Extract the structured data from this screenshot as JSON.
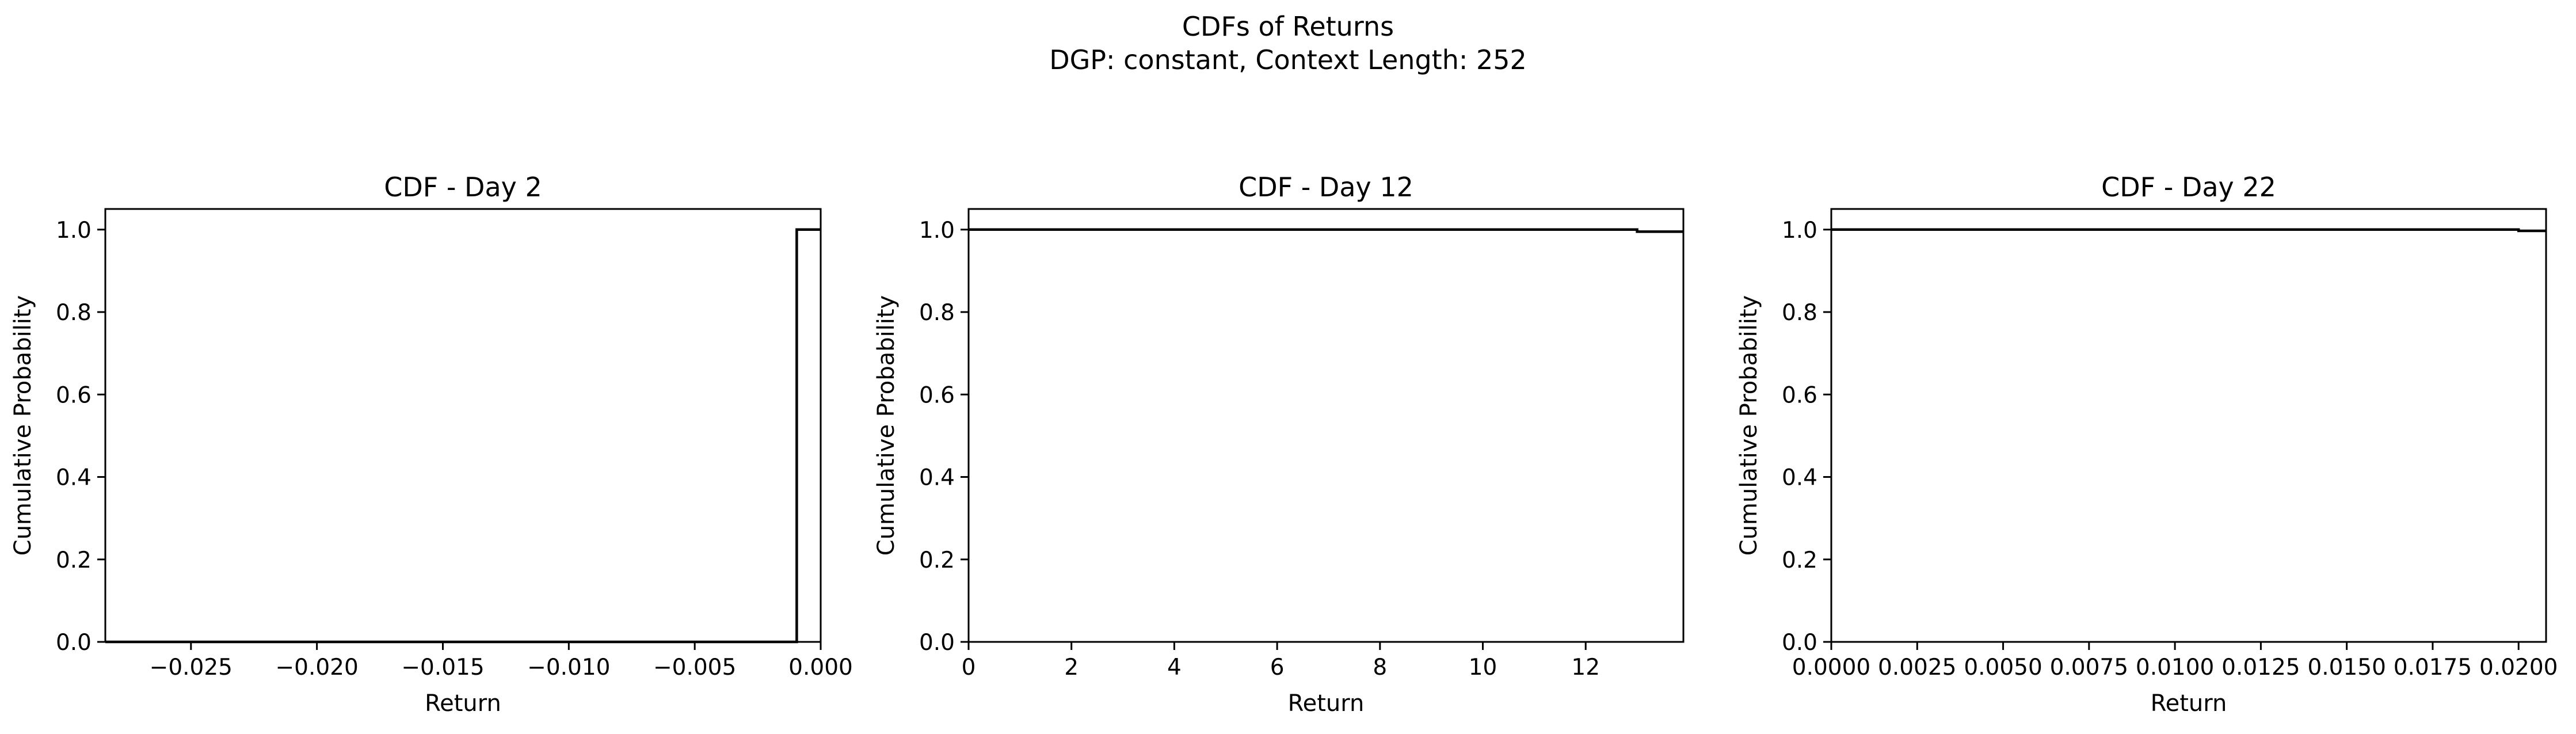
{
  "figure": {
    "suptitle_line1": "CDFs of Returns",
    "suptitle_line2": "DGP: constant, Context Length: 252"
  },
  "chart_data": [
    {
      "type": "line",
      "drawstyle": "steps-post",
      "title": "CDF - Day 2",
      "xlabel": "Return",
      "ylabel": "Cumulative Probability",
      "xlim": [
        -0.0284,
        0.0
      ],
      "ylim": [
        0.0,
        1.05
      ],
      "xticks": [
        -0.025,
        -0.02,
        -0.015,
        -0.01,
        -0.005,
        0.0
      ],
      "xtick_labels": [
        "−0.025",
        "−0.020",
        "−0.015",
        "−0.010",
        "−0.005",
        "0.000"
      ],
      "yticks": [
        0.0,
        0.2,
        0.4,
        0.6,
        0.8,
        1.0
      ],
      "ytick_labels": [
        "0.0",
        "0.2",
        "0.4",
        "0.6",
        "0.8",
        "1.0"
      ],
      "grid": false,
      "color": "#000000",
      "series": [
        {
          "x": [
            -0.0284,
            -0.00095,
            -0.00095,
            0.0
          ],
          "y": [
            0.0,
            0.0,
            1.0,
            1.0
          ]
        }
      ]
    },
    {
      "type": "line",
      "drawstyle": "steps-post",
      "title": "CDF - Day 12",
      "xlabel": "Return",
      "ylabel": "Cumulative Probability",
      "xlim": [
        0.0,
        13.9
      ],
      "ylim": [
        0.0,
        1.05
      ],
      "xticks": [
        0,
        2,
        4,
        6,
        8,
        10,
        12
      ],
      "xtick_labels": [
        "0",
        "2",
        "4",
        "6",
        "8",
        "10",
        "12"
      ],
      "yticks": [
        0.0,
        0.2,
        0.4,
        0.6,
        0.8,
        1.0
      ],
      "ytick_labels": [
        "0.0",
        "0.2",
        "0.4",
        "0.6",
        "0.8",
        "1.0"
      ],
      "grid": false,
      "color": "#000000",
      "series": [
        {
          "x": [
            0.0,
            13.0,
            13.0,
            13.9
          ],
          "y": [
            1.0,
            1.0,
            0.995,
            0.995
          ]
        }
      ]
    },
    {
      "type": "line",
      "drawstyle": "steps-post",
      "title": "CDF - Day 22",
      "xlabel": "Return",
      "ylabel": "Cumulative Probability",
      "xlim": [
        0.0,
        0.0208
      ],
      "ylim": [
        0.0,
        1.05
      ],
      "xticks": [
        0.0,
        0.0025,
        0.005,
        0.0075,
        0.01,
        0.0125,
        0.015,
        0.0175,
        0.02
      ],
      "xtick_labels": [
        "0.0000",
        "0.0025",
        "0.0050",
        "0.0075",
        "0.0100",
        "0.0125",
        "0.0150",
        "0.0175",
        "0.0200"
      ],
      "yticks": [
        0.0,
        0.2,
        0.4,
        0.6,
        0.8,
        1.0
      ],
      "ytick_labels": [
        "0.0",
        "0.2",
        "0.4",
        "0.6",
        "0.8",
        "1.0"
      ],
      "grid": false,
      "color": "#000000",
      "series": [
        {
          "x": [
            0.0,
            0.02,
            0.02,
            0.0208
          ],
          "y": [
            1.0,
            1.0,
            0.997,
            0.997
          ]
        }
      ]
    }
  ]
}
